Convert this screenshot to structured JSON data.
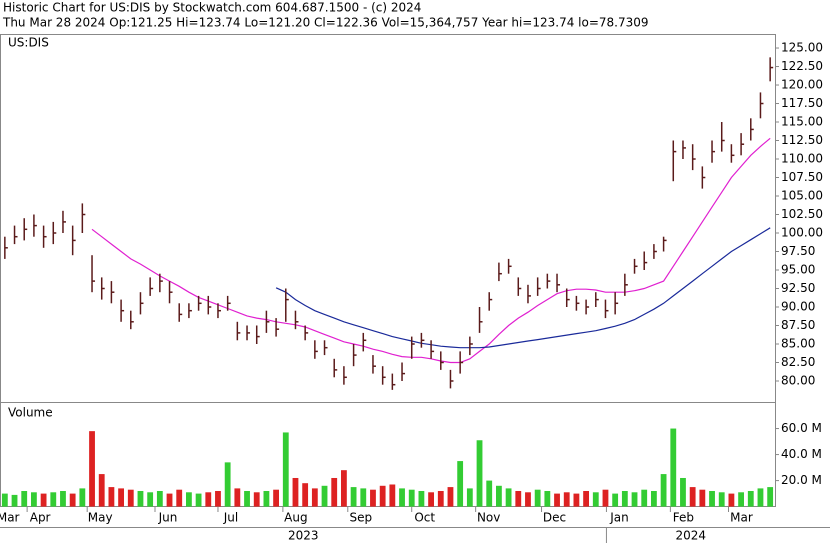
{
  "chart_data": {
    "type": "ohlc",
    "title": "Historic Chart for US:DIS by Stockwatch.com 604.687.1500 - (c) 2024",
    "subtitle": "Thu Mar 28 2024   Op:121.25  Hi=123.74  Lo=121.20  Cl=122.36  Vol=15,364,757  Year hi=123.74  lo=78.7309",
    "symbol": "US:DIS",
    "bar_color": "#5a1a1a",
    "high": [
      99.5,
      101,
      102,
      102.5,
      101,
      101.5,
      103,
      101,
      104,
      97,
      94,
      93.5,
      91,
      89.5,
      92,
      94,
      94.5,
      93.5,
      90.5,
      90.5,
      91.5,
      91.5,
      90.5,
      91.5,
      88,
      87.5,
      87.5,
      89.5,
      88.5,
      92.5,
      89.5,
      87.5,
      85.5,
      85.5,
      83,
      82,
      85,
      86.5,
      83.5,
      82,
      81,
      82.5,
      86,
      86.5,
      85.5,
      84,
      81.5,
      84,
      86,
      90,
      92,
      96,
      96.5,
      94,
      93,
      94,
      94.5,
      94.5,
      92.5,
      91.5,
      91,
      92,
      91,
      92,
      94.5,
      96.5,
      97.5,
      98.5,
      99.5,
      112.5,
      112.5,
      112,
      109,
      112.5,
      115,
      112,
      113.5,
      115.5,
      119,
      123.74
    ],
    "low": [
      96.5,
      98.5,
      99,
      99.5,
      98,
      98.5,
      100,
      97,
      100,
      92,
      91,
      90.5,
      88,
      87,
      89,
      91.5,
      92,
      90.5,
      88,
      88.5,
      89.5,
      89,
      88.5,
      89.5,
      85.5,
      85.5,
      85,
      86.5,
      86,
      88,
      87,
      85.5,
      83,
      83.5,
      80.5,
      79.5,
      82,
      84,
      81,
      79.5,
      78.8,
      80,
      83,
      84.5,
      83,
      81.5,
      79,
      81,
      83.5,
      86.5,
      89.5,
      93.5,
      94.5,
      91.5,
      90.5,
      91.5,
      92.5,
      92,
      90,
      89.5,
      89,
      90,
      88.5,
      89,
      91.5,
      94.5,
      95,
      96.5,
      97.5,
      107,
      110,
      108.5,
      106,
      109.5,
      111,
      109.5,
      110.5,
      112.5,
      115.5,
      120.5
    ],
    "close": [
      98,
      99.5,
      100.5,
      101,
      99.5,
      100,
      101.5,
      99,
      102.5,
      93.5,
      92.5,
      92,
      89.5,
      88,
      90.5,
      92.5,
      93.5,
      92,
      89,
      89.5,
      90.5,
      90,
      89.5,
      90.5,
      86.5,
      86.5,
      86,
      88,
      87,
      91,
      88,
      86.5,
      84,
      84.5,
      81.5,
      80.5,
      83.5,
      85.5,
      82,
      80.5,
      79.5,
      81,
      85,
      85.5,
      84,
      82.5,
      80,
      82.5,
      85,
      88,
      91,
      94.5,
      95.5,
      92.5,
      91.5,
      92.5,
      93.5,
      93,
      91,
      90.5,
      90,
      91,
      89.5,
      90.5,
      93,
      95.5,
      96,
      97.5,
      99,
      111,
      111.5,
      110,
      107.5,
      111,
      112.5,
      110.5,
      112,
      114,
      117.5,
      122.36
    ],
    "moving_averages": [
      {
        "color": "#e020d0",
        "values": [
          null,
          null,
          null,
          null,
          null,
          null,
          null,
          null,
          null,
          100.5,
          99.5,
          98.5,
          97.5,
          96.5,
          95.8,
          95,
          94.2,
          93.5,
          92.8,
          92,
          91.3,
          90.8,
          90.3,
          89.8,
          89.3,
          88.8,
          88.5,
          88.3,
          88,
          87.8,
          87.6,
          87.3,
          86.8,
          86.3,
          85.8,
          85.3,
          85,
          84.7,
          84.3,
          84,
          83.6,
          83.3,
          83.2,
          83.2,
          83,
          82.7,
          82.5,
          82.5,
          83,
          84,
          85,
          86.3,
          87.5,
          88.5,
          89.3,
          90.2,
          91,
          91.8,
          92.2,
          92.4,
          92.4,
          92.3,
          92,
          92,
          92,
          92.2,
          92.5,
          93,
          93.5,
          95.5,
          97.5,
          99.5,
          101.5,
          103.5,
          105.5,
          107.5,
          109,
          110.5,
          111.7,
          112.8
        ]
      },
      {
        "color": "#1a2a9a",
        "values": [
          null,
          null,
          null,
          null,
          null,
          null,
          null,
          null,
          null,
          null,
          null,
          null,
          null,
          null,
          null,
          null,
          null,
          null,
          null,
          null,
          null,
          null,
          null,
          null,
          null,
          null,
          null,
          null,
          92.6,
          92,
          91,
          90.2,
          89.5,
          89,
          88.5,
          88,
          87.6,
          87.2,
          86.8,
          86.4,
          86,
          85.7,
          85.4,
          85.1,
          84.9,
          84.7,
          84.6,
          84.5,
          84.5,
          84.5,
          84.6,
          84.8,
          85,
          85.2,
          85.4,
          85.6,
          85.8,
          86,
          86.2,
          86.4,
          86.6,
          86.8,
          87.1,
          87.4,
          87.8,
          88.3,
          89,
          89.7,
          90.5,
          91.5,
          92.5,
          93.5,
          94.5,
          95.5,
          96.5,
          97.5,
          98.3,
          99.1,
          99.9,
          100.7
        ]
      }
    ],
    "xlim": [
      -0.5,
      79.5
    ],
    "ylim": [
      77.16,
      126.76
    ],
    "yticks": [
      {
        "value": 80,
        "label": "80.00"
      },
      {
        "value": 82.5,
        "label": "82.50"
      },
      {
        "value": 85,
        "label": "85.00"
      },
      {
        "value": 87.5,
        "label": "87.50"
      },
      {
        "value": 90,
        "label": "90.00"
      },
      {
        "value": 92.5,
        "label": "92.50"
      },
      {
        "value": 95,
        "label": "95.00"
      },
      {
        "value": 97.5,
        "label": "97.50"
      },
      {
        "value": 100,
        "label": "100.00"
      },
      {
        "value": 102.5,
        "label": "102.50"
      },
      {
        "value": 105,
        "label": "105.00"
      },
      {
        "value": 107.5,
        "label": "107.50"
      },
      {
        "value": 110,
        "label": "110.00"
      },
      {
        "value": 112.5,
        "label": "112.50"
      },
      {
        "value": 115,
        "label": "115.00"
      },
      {
        "value": 117.5,
        "label": "117.50"
      },
      {
        "value": 120,
        "label": "120.00"
      },
      {
        "value": 122.5,
        "label": "122.50"
      },
      {
        "value": 125,
        "label": "125.00"
      }
    ],
    "xticks": [
      {
        "value": -1,
        "label": "Mar"
      },
      {
        "value": 2.3,
        "label": "Apr"
      },
      {
        "value": 8.5,
        "label": "May"
      },
      {
        "value": 15.5,
        "label": "Jun"
      },
      {
        "value": 22,
        "label": "Jul"
      },
      {
        "value": 28.7,
        "label": "Aug"
      },
      {
        "value": 35.4,
        "label": "Sep"
      },
      {
        "value": 42,
        "label": "Oct"
      },
      {
        "value": 48.6,
        "label": "Nov"
      },
      {
        "value": 55.4,
        "label": "Dec"
      },
      {
        "value": 62.1,
        "label": "Jan"
      },
      {
        "value": 68.7,
        "label": "Feb"
      },
      {
        "value": 74.7,
        "label": "Mar"
      }
    ],
    "years": [
      {
        "label": "2023",
        "start": -0.5,
        "end": 62.1
      },
      {
        "label": "2024",
        "start": 62.1,
        "end": 79.5
      }
    ],
    "volume": {
      "label": "Volume",
      "up_color": "#33cc33",
      "down_color": "#dd2222",
      "values": [
        10,
        9,
        12,
        11,
        10,
        11,
        12,
        10,
        14,
        58,
        25,
        15,
        14,
        13,
        12,
        11,
        12,
        10,
        13,
        11,
        10,
        11,
        12,
        34,
        14,
        12,
        11,
        12,
        13,
        57,
        22,
        18,
        14,
        16,
        22,
        28,
        15,
        14,
        13,
        16,
        17,
        14,
        13,
        12,
        11,
        12,
        15,
        35,
        14,
        51,
        20,
        16,
        14,
        12,
        11,
        13,
        12,
        10,
        11,
        10,
        12,
        11,
        13,
        10,
        12,
        11,
        13,
        12,
        25,
        60,
        22,
        15,
        13,
        12,
        11,
        10,
        11,
        12,
        14,
        15
      ],
      "ylim": [
        -0.3,
        80.4
      ],
      "yticks": [
        {
          "value": 20,
          "label": "20.0 M"
        },
        {
          "value": 40,
          "label": "40.0 M"
        },
        {
          "value": 60,
          "label": "60.0 M"
        }
      ]
    }
  }
}
